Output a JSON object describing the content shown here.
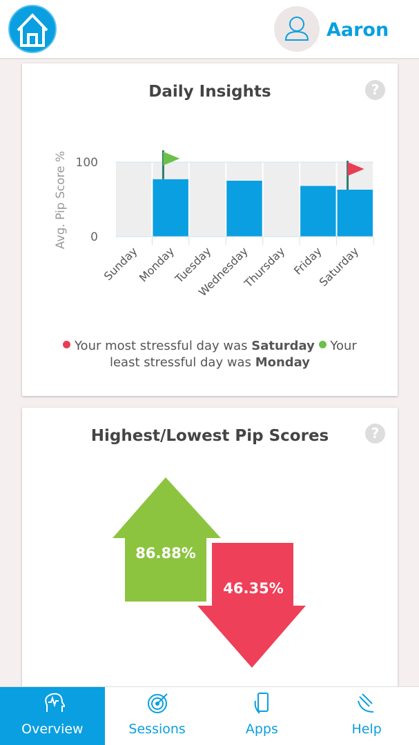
{
  "header": {
    "user_name": "Aaron"
  },
  "daily_insights": {
    "title": "Daily Insights",
    "help": "?",
    "chart": {
      "type": "bar",
      "y_label": "Avg. Pip Score %",
      "categories": [
        "Sunday",
        "Monday",
        "Tuesday",
        "Wednesday",
        "Thursday",
        "Friday",
        "Saturday"
      ],
      "values": [
        null,
        77,
        null,
        75,
        null,
        68,
        63
      ],
      "color": "#0a9fe0",
      "ylim": [
        0,
        100
      ],
      "yticks": [
        0,
        100
      ]
    },
    "note": {
      "stress_prefix": "Your most stressful day was",
      "stress_day": "Saturday",
      "calm_prefix": "Your least stressful day was",
      "calm_day": "Monday"
    }
  },
  "pip_scores": {
    "title": "Highest/Lowest Pip Scores",
    "help": "?",
    "highest": "86.88%",
    "lowest": "46.35%"
  },
  "nav": {
    "tabs": [
      "Overview",
      "Sessions",
      "Apps",
      "Help"
    ]
  }
}
